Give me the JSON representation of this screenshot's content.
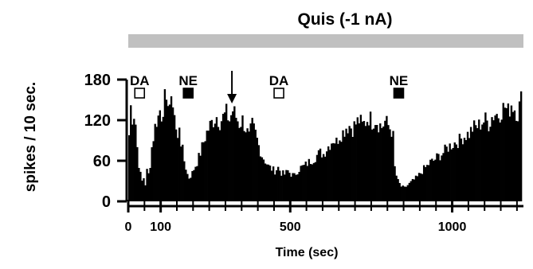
{
  "chart_data": {
    "type": "bar",
    "title": "Quis (-1 nA)",
    "xlabel": "Time (sec)",
    "ylabel": "spikes / 10 sec.",
    "bin_width_sec": 5,
    "xlim": [
      0,
      1220
    ],
    "ylim": [
      0,
      180
    ],
    "x_major_ticks": [
      0,
      100,
      500,
      1000
    ],
    "x_minor_tick_step": 50,
    "y_ticks": [
      0,
      60,
      120,
      180
    ],
    "treatment_bar": {
      "label": "Quis (-1 nA)",
      "start": 0,
      "end": 1220,
      "color": "#c0c0c0"
    },
    "annotations": [
      {
        "label": "DA",
        "x": 35,
        "marker": "open-square"
      },
      {
        "label": "NE",
        "x": 185,
        "marker": "filled-square"
      },
      {
        "label": "",
        "x": 320,
        "marker": "down-arrow"
      },
      {
        "label": "DA",
        "x": 465,
        "marker": "open-square"
      },
      {
        "label": "NE",
        "x": 835,
        "marker": "filled-square"
      }
    ],
    "profile_points": [
      [
        0,
        98
      ],
      [
        5,
        140
      ],
      [
        10,
        125
      ],
      [
        15,
        130
      ],
      [
        20,
        115
      ],
      [
        25,
        80
      ],
      [
        30,
        55
      ],
      [
        35,
        40
      ],
      [
        40,
        30
      ],
      [
        45,
        35
      ],
      [
        50,
        25
      ],
      [
        55,
        45
      ],
      [
        60,
        40
      ],
      [
        65,
        55
      ],
      [
        70,
        80
      ],
      [
        75,
        95
      ],
      [
        80,
        110
      ],
      [
        85,
        120
      ],
      [
        90,
        125
      ],
      [
        95,
        135
      ],
      [
        100,
        128
      ],
      [
        105,
        140
      ],
      [
        110,
        150
      ],
      [
        115,
        135
      ],
      [
        120,
        155
      ],
      [
        125,
        145
      ],
      [
        130,
        140
      ],
      [
        135,
        150
      ],
      [
        140,
        130
      ],
      [
        145,
        105
      ],
      [
        150,
        90
      ],
      [
        155,
        115
      ],
      [
        160,
        88
      ],
      [
        165,
        75
      ],
      [
        170,
        60
      ],
      [
        175,
        50
      ],
      [
        180,
        40
      ],
      [
        185,
        35
      ],
      [
        190,
        38
      ],
      [
        195,
        42
      ],
      [
        200,
        48
      ],
      [
        210,
        58
      ],
      [
        220,
        72
      ],
      [
        230,
        88
      ],
      [
        240,
        102
      ],
      [
        250,
        112
      ],
      [
        260,
        120
      ],
      [
        270,
        126
      ],
      [
        280,
        118
      ],
      [
        290,
        124
      ],
      [
        300,
        130
      ],
      [
        310,
        120
      ],
      [
        320,
        135
      ],
      [
        330,
        125
      ],
      [
        340,
        115
      ],
      [
        350,
        120
      ],
      [
        360,
        108
      ],
      [
        370,
        95
      ],
      [
        380,
        112
      ],
      [
        390,
        100
      ],
      [
        400,
        82
      ],
      [
        410,
        68
      ],
      [
        420,
        60
      ],
      [
        430,
        52
      ],
      [
        440,
        48
      ],
      [
        450,
        45
      ],
      [
        460,
        50
      ],
      [
        470,
        42
      ],
      [
        480,
        40
      ],
      [
        490,
        45
      ],
      [
        500,
        40
      ],
      [
        510,
        38
      ],
      [
        520,
        45
      ],
      [
        530,
        50
      ],
      [
        540,
        52
      ],
      [
        550,
        56
      ],
      [
        560,
        60
      ],
      [
        570,
        63
      ],
      [
        580,
        68
      ],
      [
        590,
        72
      ],
      [
        600,
        70
      ],
      [
        610,
        78
      ],
      [
        620,
        85
      ],
      [
        630,
        92
      ],
      [
        640,
        88
      ],
      [
        650,
        98
      ],
      [
        660,
        102
      ],
      [
        670,
        110
      ],
      [
        680,
        112
      ],
      [
        690,
        108
      ],
      [
        700,
        115
      ],
      [
        710,
        120
      ],
      [
        720,
        112
      ],
      [
        730,
        118
      ],
      [
        740,
        125
      ],
      [
        750,
        118
      ],
      [
        760,
        122
      ],
      [
        770,
        115
      ],
      [
        780,
        110
      ],
      [
        790,
        118
      ],
      [
        800,
        112
      ],
      [
        810,
        105
      ],
      [
        815,
        95
      ],
      [
        820,
        50
      ],
      [
        825,
        38
      ],
      [
        830,
        30
      ],
      [
        835,
        26
      ],
      [
        840,
        22
      ],
      [
        850,
        20
      ],
      [
        860,
        24
      ],
      [
        870,
        28
      ],
      [
        880,
        32
      ],
      [
        890,
        36
      ],
      [
        900,
        42
      ],
      [
        910,
        48
      ],
      [
        920,
        52
      ],
      [
        930,
        58
      ],
      [
        940,
        60
      ],
      [
        950,
        65
      ],
      [
        960,
        68
      ],
      [
        970,
        72
      ],
      [
        980,
        78
      ],
      [
        990,
        82
      ],
      [
        1000,
        85
      ],
      [
        1010,
        88
      ],
      [
        1020,
        90
      ],
      [
        1030,
        95
      ],
      [
        1040,
        98
      ],
      [
        1050,
        100
      ],
      [
        1060,
        108
      ],
      [
        1070,
        110
      ],
      [
        1080,
        112
      ],
      [
        1090,
        118
      ],
      [
        1100,
        120
      ],
      [
        1110,
        115
      ],
      [
        1120,
        125
      ],
      [
        1130,
        130
      ],
      [
        1140,
        128
      ],
      [
        1150,
        135
      ],
      [
        1160,
        140
      ],
      [
        1170,
        132
      ],
      [
        1180,
        145
      ],
      [
        1190,
        138
      ],
      [
        1200,
        130
      ],
      [
        1210,
        150
      ],
      [
        1215,
        120
      ]
    ]
  }
}
